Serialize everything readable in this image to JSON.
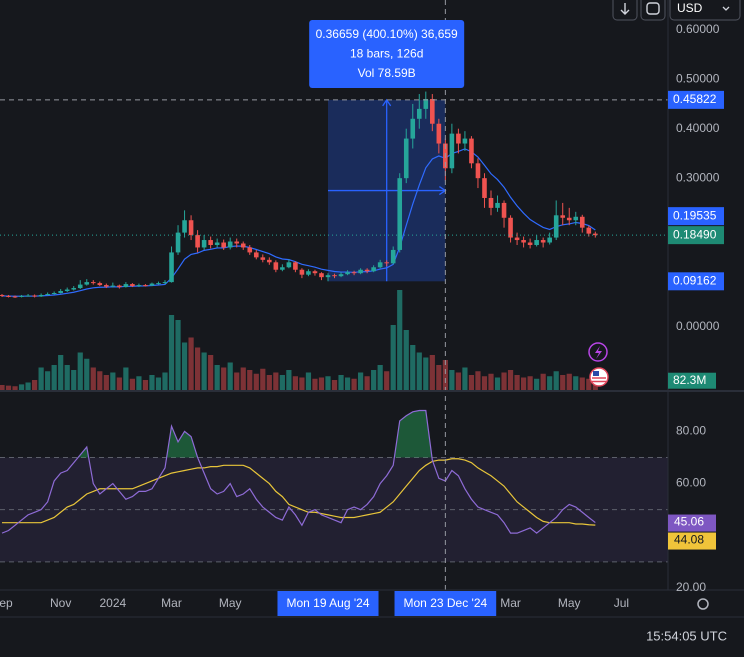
{
  "toolbar": {
    "currency": "USD"
  },
  "clock": "15:54:05 UTC",
  "chart_data": {
    "type": "candlestick",
    "categories": [
      "Sep",
      null,
      null,
      null,
      null,
      null,
      null,
      null,
      null,
      "Nov",
      null,
      null,
      null,
      null,
      null,
      null,
      null,
      "2024",
      null,
      null,
      null,
      null,
      null,
      null,
      null,
      null,
      "Mar",
      null,
      null,
      null,
      null,
      null,
      null,
      null,
      null,
      "May",
      null,
      null,
      null,
      null,
      null,
      null,
      null,
      null,
      null,
      null,
      null,
      null,
      null,
      null,
      "Mon 19 Aug '24",
      null,
      null,
      null,
      null,
      null,
      null,
      null,
      null,
      null,
      null,
      null,
      null,
      null,
      null,
      null,
      null,
      null,
      "Mon 23 Dec '24",
      null,
      null,
      null,
      null,
      null,
      null,
      null,
      null,
      null,
      "Mar",
      null,
      null,
      null,
      null,
      null,
      null,
      null,
      null,
      "May",
      null,
      null,
      null,
      null,
      null,
      null,
      null,
      "Jul"
    ],
    "price": {
      "up_color": "#26a69a",
      "down_color": "#ef5350",
      "ylim": [
        -0.128,
        0.66
      ],
      "yticks": [
        {
          "value": 0.6,
          "label": "0.60000"
        },
        {
          "value": 0.5,
          "label": "0.50000"
        },
        {
          "value": 0.4,
          "label": "0.40000"
        },
        {
          "value": 0.3,
          "label": "0.30000"
        },
        {
          "value": 0,
          "label": "0.00000"
        }
      ],
      "close_label": "0.18490",
      "ohlc": [
        [
          0.064,
          0.066,
          0.06,
          0.062
        ],
        [
          0.062,
          0.064,
          0.059,
          0.061
        ],
        [
          0.061,
          0.063,
          0.058,
          0.06
        ],
        [
          0.06,
          0.064,
          0.059,
          0.062
        ],
        [
          0.062,
          0.066,
          0.061,
          0.063
        ],
        [
          0.063,
          0.065,
          0.059,
          0.061
        ],
        [
          0.061,
          0.067,
          0.06,
          0.064
        ],
        [
          0.064,
          0.069,
          0.063,
          0.066
        ],
        [
          0.066,
          0.071,
          0.065,
          0.068
        ],
        [
          0.068,
          0.076,
          0.067,
          0.072
        ],
        [
          0.072,
          0.079,
          0.07,
          0.075
        ],
        [
          0.075,
          0.082,
          0.073,
          0.078
        ],
        [
          0.078,
          0.094,
          0.076,
          0.085
        ],
        [
          0.085,
          0.096,
          0.083,
          0.09
        ],
        [
          0.09,
          0.094,
          0.085,
          0.088
        ],
        [
          0.088,
          0.091,
          0.082,
          0.084
        ],
        [
          0.084,
          0.087,
          0.078,
          0.081
        ],
        [
          0.081,
          0.089,
          0.079,
          0.083
        ],
        [
          0.083,
          0.085,
          0.077,
          0.08
        ],
        [
          0.08,
          0.09,
          0.079,
          0.086
        ],
        [
          0.086,
          0.088,
          0.08,
          0.082
        ],
        [
          0.082,
          0.087,
          0.08,
          0.084
        ],
        [
          0.084,
          0.086,
          0.081,
          0.083
        ],
        [
          0.083,
          0.089,
          0.082,
          0.087
        ],
        [
          0.087,
          0.091,
          0.085,
          0.088
        ],
        [
          0.088,
          0.094,
          0.086,
          0.09
        ],
        [
          0.09,
          0.162,
          0.089,
          0.15
        ],
        [
          0.15,
          0.205,
          0.145,
          0.19
        ],
        [
          0.19,
          0.235,
          0.18,
          0.215
        ],
        [
          0.215,
          0.225,
          0.175,
          0.185
        ],
        [
          0.185,
          0.195,
          0.15,
          0.16
        ],
        [
          0.16,
          0.185,
          0.155,
          0.175
        ],
        [
          0.175,
          0.182,
          0.158,
          0.165
        ],
        [
          0.165,
          0.178,
          0.16,
          0.17
        ],
        [
          0.17,
          0.176,
          0.155,
          0.16
        ],
        [
          0.16,
          0.18,
          0.156,
          0.172
        ],
        [
          0.172,
          0.178,
          0.16,
          0.168
        ],
        [
          0.168,
          0.172,
          0.155,
          0.16
        ],
        [
          0.16,
          0.165,
          0.145,
          0.15
        ],
        [
          0.15,
          0.155,
          0.136,
          0.14
        ],
        [
          0.14,
          0.146,
          0.13,
          0.135
        ],
        [
          0.135,
          0.14,
          0.125,
          0.13
        ],
        [
          0.13,
          0.134,
          0.11,
          0.115
        ],
        [
          0.115,
          0.126,
          0.112,
          0.12
        ],
        [
          0.12,
          0.136,
          0.118,
          0.13
        ],
        [
          0.13,
          0.132,
          0.11,
          0.115
        ],
        [
          0.115,
          0.118,
          0.098,
          0.105
        ],
        [
          0.105,
          0.116,
          0.102,
          0.112
        ],
        [
          0.112,
          0.115,
          0.103,
          0.108
        ],
        [
          0.108,
          0.11,
          0.094,
          0.1
        ],
        [
          0.1,
          0.108,
          0.09162,
          0.104
        ],
        [
          0.104,
          0.107,
          0.098,
          0.102
        ],
        [
          0.102,
          0.11,
          0.1,
          0.106
        ],
        [
          0.106,
          0.114,
          0.104,
          0.11
        ],
        [
          0.11,
          0.113,
          0.104,
          0.108
        ],
        [
          0.108,
          0.118,
          0.106,
          0.115
        ],
        [
          0.115,
          0.118,
          0.108,
          0.112
        ],
        [
          0.112,
          0.124,
          0.11,
          0.12
        ],
        [
          0.12,
          0.135,
          0.118,
          0.13
        ],
        [
          0.13,
          0.134,
          0.122,
          0.128
        ],
        [
          0.128,
          0.162,
          0.126,
          0.155
        ],
        [
          0.155,
          0.31,
          0.15,
          0.3
        ],
        [
          0.3,
          0.4,
          0.29,
          0.38
        ],
        [
          0.38,
          0.45,
          0.36,
          0.42
        ],
        [
          0.42,
          0.47,
          0.4,
          0.44
        ],
        [
          0.44,
          0.475,
          0.42,
          0.46
        ],
        [
          0.46,
          0.47,
          0.395,
          0.41
        ],
        [
          0.41,
          0.42,
          0.35,
          0.37
        ],
        [
          0.37,
          0.38,
          0.295,
          0.32
        ],
        [
          0.32,
          0.41,
          0.31,
          0.39
        ],
        [
          0.39,
          0.4,
          0.35,
          0.37
        ],
        [
          0.37,
          0.395,
          0.355,
          0.38
        ],
        [
          0.38,
          0.385,
          0.32,
          0.33
        ],
        [
          0.33,
          0.34,
          0.28,
          0.3
        ],
        [
          0.3,
          0.31,
          0.24,
          0.26
        ],
        [
          0.26,
          0.275,
          0.225,
          0.24
        ],
        [
          0.24,
          0.265,
          0.232,
          0.25
        ],
        [
          0.25,
          0.255,
          0.2,
          0.22
        ],
        [
          0.22,
          0.225,
          0.17,
          0.18
        ],
        [
          0.18,
          0.19,
          0.165,
          0.175
        ],
        [
          0.175,
          0.182,
          0.16,
          0.17
        ],
        [
          0.17,
          0.178,
          0.158,
          0.165
        ],
        [
          0.165,
          0.185,
          0.162,
          0.175
        ],
        [
          0.175,
          0.18,
          0.16,
          0.17
        ],
        [
          0.17,
          0.19,
          0.166,
          0.18
        ],
        [
          0.18,
          0.255,
          0.175,
          0.225
        ],
        [
          0.225,
          0.25,
          0.205,
          0.22
        ],
        [
          0.22,
          0.24,
          0.205,
          0.215
        ],
        [
          0.215,
          0.232,
          0.205,
          0.222
        ],
        [
          0.222,
          0.226,
          0.19,
          0.2
        ],
        [
          0.2,
          0.204,
          0.182,
          0.188
        ],
        [
          0.188,
          0.192,
          0.18,
          0.1849
        ],
        null,
        null,
        null,
        null
      ],
      "ma": {
        "color": "#2f6bff",
        "values": [
          0.062,
          0.0618,
          0.0614,
          0.0615,
          0.0618,
          0.0617,
          0.0621,
          0.0629,
          0.0639,
          0.0655,
          0.0674,
          0.0695,
          0.0726,
          0.0761,
          0.0785,
          0.0796,
          0.0799,
          0.0805,
          0.0804,
          0.0815,
          0.0816,
          0.0821,
          0.0823,
          0.0832,
          0.0842,
          0.0853,
          0.0983,
          0.1166,
          0.1363,
          0.146,
          0.1488,
          0.1541,
          0.1563,
          0.159,
          0.1592,
          0.1618,
          0.163,
          0.1624,
          0.1599,
          0.1559,
          0.1517,
          0.1474,
          0.1409,
          0.1367,
          0.1354,
          0.1313,
          0.126,
          0.1232,
          0.1202,
          0.1161,
          0.1137,
          0.1114,
          0.1103,
          0.1103,
          0.1098,
          0.1108,
          0.1111,
          0.1129,
          0.1163,
          0.1187,
          0.1259,
          0.1607,
          0.2046,
          0.2477,
          0.2861,
          0.3209,
          0.3387,
          0.345,
          0.34,
          0.35,
          0.354,
          0.3592,
          0.3534,
          0.3427,
          0.3262,
          0.3089,
          0.2972,
          0.2817,
          0.2614,
          0.2441,
          0.2293,
          0.2164,
          0.2082,
          0.2005,
          0.1964,
          0.2021,
          0.2057,
          0.2076,
          0.2105,
          0.2084,
          0.2043,
          0.19535,
          null,
          null,
          null,
          null
        ]
      }
    },
    "volume": {
      "up_color": "#1f6b63",
      "down_color": "#7d3236",
      "ylim": [
        0,
        800
      ],
      "last_label": "82.3M",
      "values": [
        40,
        35,
        30,
        45,
        60,
        80,
        180,
        150,
        200,
        280,
        200,
        160,
        300,
        250,
        180,
        150,
        120,
        140,
        100,
        180,
        90,
        110,
        80,
        120,
        100,
        140,
        600,
        560,
        380,
        420,
        340,
        300,
        280,
        200,
        180,
        220,
        140,
        180,
        160,
        130,
        170,
        120,
        140,
        120,
        160,
        110,
        100,
        140,
        90,
        100,
        110,
        80,
        120,
        100,
        90,
        140,
        110,
        160,
        200,
        150,
        520,
        800,
        480,
        360,
        300,
        260,
        280,
        200,
        240,
        160,
        140,
        180,
        120,
        150,
        110,
        130,
        100,
        140,
        160,
        120,
        100,
        110,
        90,
        130,
        110,
        150,
        120,
        130,
        110,
        100,
        90,
        82.3,
        null,
        null,
        null,
        null
      ]
    },
    "measure": {
      "low": 0.09162,
      "high": 0.45822,
      "lines": [
        "0.36659 (400.10%) 36,659",
        "18 bars, 126d",
        "Vol 78.59B"
      ]
    },
    "rsi": {
      "ylim": [
        19.2,
        95.1
      ],
      "yticks": [
        {
          "value": 80,
          "label": "80.00"
        },
        {
          "value": 60,
          "label": "60.00"
        },
        {
          "value": 20,
          "label": "20.00"
        }
      ],
      "bands": [
        30,
        50,
        70
      ],
      "color": "#8e6bd6",
      "values": [
        41,
        42,
        44,
        46,
        48,
        49,
        50,
        53,
        61,
        64,
        65,
        68,
        71,
        74,
        60,
        56,
        58,
        60,
        57,
        54,
        55,
        57,
        57,
        58,
        62,
        66,
        82,
        76,
        80,
        78,
        70,
        64,
        58,
        56,
        57,
        60,
        55,
        56,
        58,
        54,
        51,
        49,
        47,
        46,
        51,
        48,
        44,
        49,
        50,
        48,
        47,
        46,
        45,
        50,
        51,
        50,
        52,
        55,
        60,
        63,
        67,
        84,
        86,
        87.5,
        88,
        88,
        69,
        62,
        61,
        65,
        63,
        58,
        54,
        51,
        50,
        49,
        48,
        45,
        41,
        41,
        42,
        43,
        41,
        43,
        45,
        47,
        50,
        52,
        51,
        49,
        47,
        45.06,
        null,
        null,
        null,
        null
      ],
      "ma": {
        "color": "#e8c53a",
        "values": [
          45,
          45,
          45,
          45,
          45,
          45,
          45,
          46,
          47,
          49,
          51,
          52,
          54,
          56,
          57,
          58,
          58,
          58,
          58,
          58,
          58,
          59,
          60,
          61,
          62,
          63,
          64,
          64.5,
          65,
          65.5,
          66,
          66,
          66.5,
          66.5,
          67,
          67,
          67,
          67,
          66,
          64,
          62,
          60,
          57,
          55,
          52,
          51,
          50,
          49,
          49,
          48.5,
          48,
          47.5,
          47,
          47,
          47,
          47.5,
          48,
          48.5,
          49,
          51,
          53,
          56,
          59,
          62,
          65,
          67,
          68.5,
          69,
          69,
          69.5,
          69.5,
          69,
          68,
          66,
          64.5,
          63,
          61,
          59,
          56,
          53,
          51,
          49,
          47,
          45.5,
          45,
          45,
          45,
          45,
          44.5,
          44.5,
          44.2,
          44.08,
          null,
          null,
          null,
          null
        ]
      }
    }
  }
}
